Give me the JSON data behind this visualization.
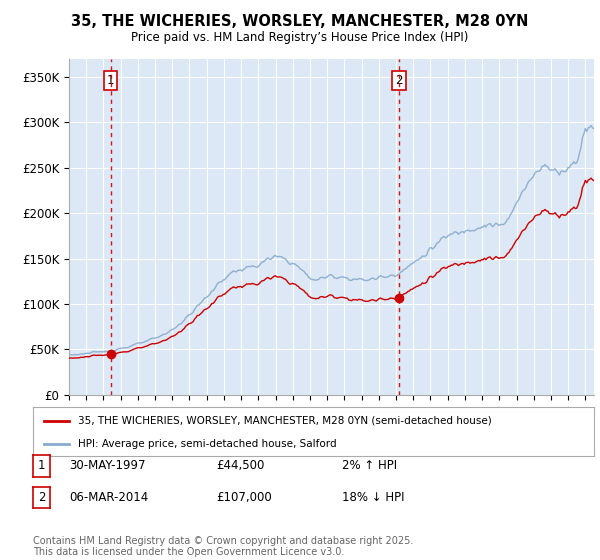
{
  "title": "35, THE WICHERIES, WORSLEY, MANCHESTER, M28 0YN",
  "subtitle": "Price paid vs. HM Land Registry’s House Price Index (HPI)",
  "legend_line1": "35, THE WICHERIES, WORSLEY, MANCHESTER, M28 0YN (semi-detached house)",
  "legend_line2": "HPI: Average price, semi-detached house, Salford",
  "annotation1_label": "1",
  "annotation1_date": "30-MAY-1997",
  "annotation1_price": "£44,500",
  "annotation1_hpi": "2% ↑ HPI",
  "annotation2_label": "2",
  "annotation2_date": "06-MAR-2014",
  "annotation2_price": "£107,000",
  "annotation2_hpi": "18% ↓ HPI",
  "footer": "Contains HM Land Registry data © Crown copyright and database right 2025.\nThis data is licensed under the Open Government Licence v3.0.",
  "line_color": "#cc0000",
  "hpi_color": "#88aacc",
  "bg_color": "#dce8f5",
  "marker_color": "#cc0000",
  "dashed_line_color": "#cc0000",
  "ylim": [
    0,
    370000
  ],
  "yticks": [
    0,
    50000,
    100000,
    150000,
    200000,
    250000,
    300000,
    350000
  ],
  "ytick_labels": [
    "£0",
    "£50K",
    "£100K",
    "£150K",
    "£200K",
    "£250K",
    "£300K",
    "£350K"
  ],
  "sale1_x": 1997.42,
  "sale1_y": 44500,
  "sale2_x": 2014.17,
  "sale2_y": 107000,
  "xmin": 1995,
  "xmax": 2025.5
}
